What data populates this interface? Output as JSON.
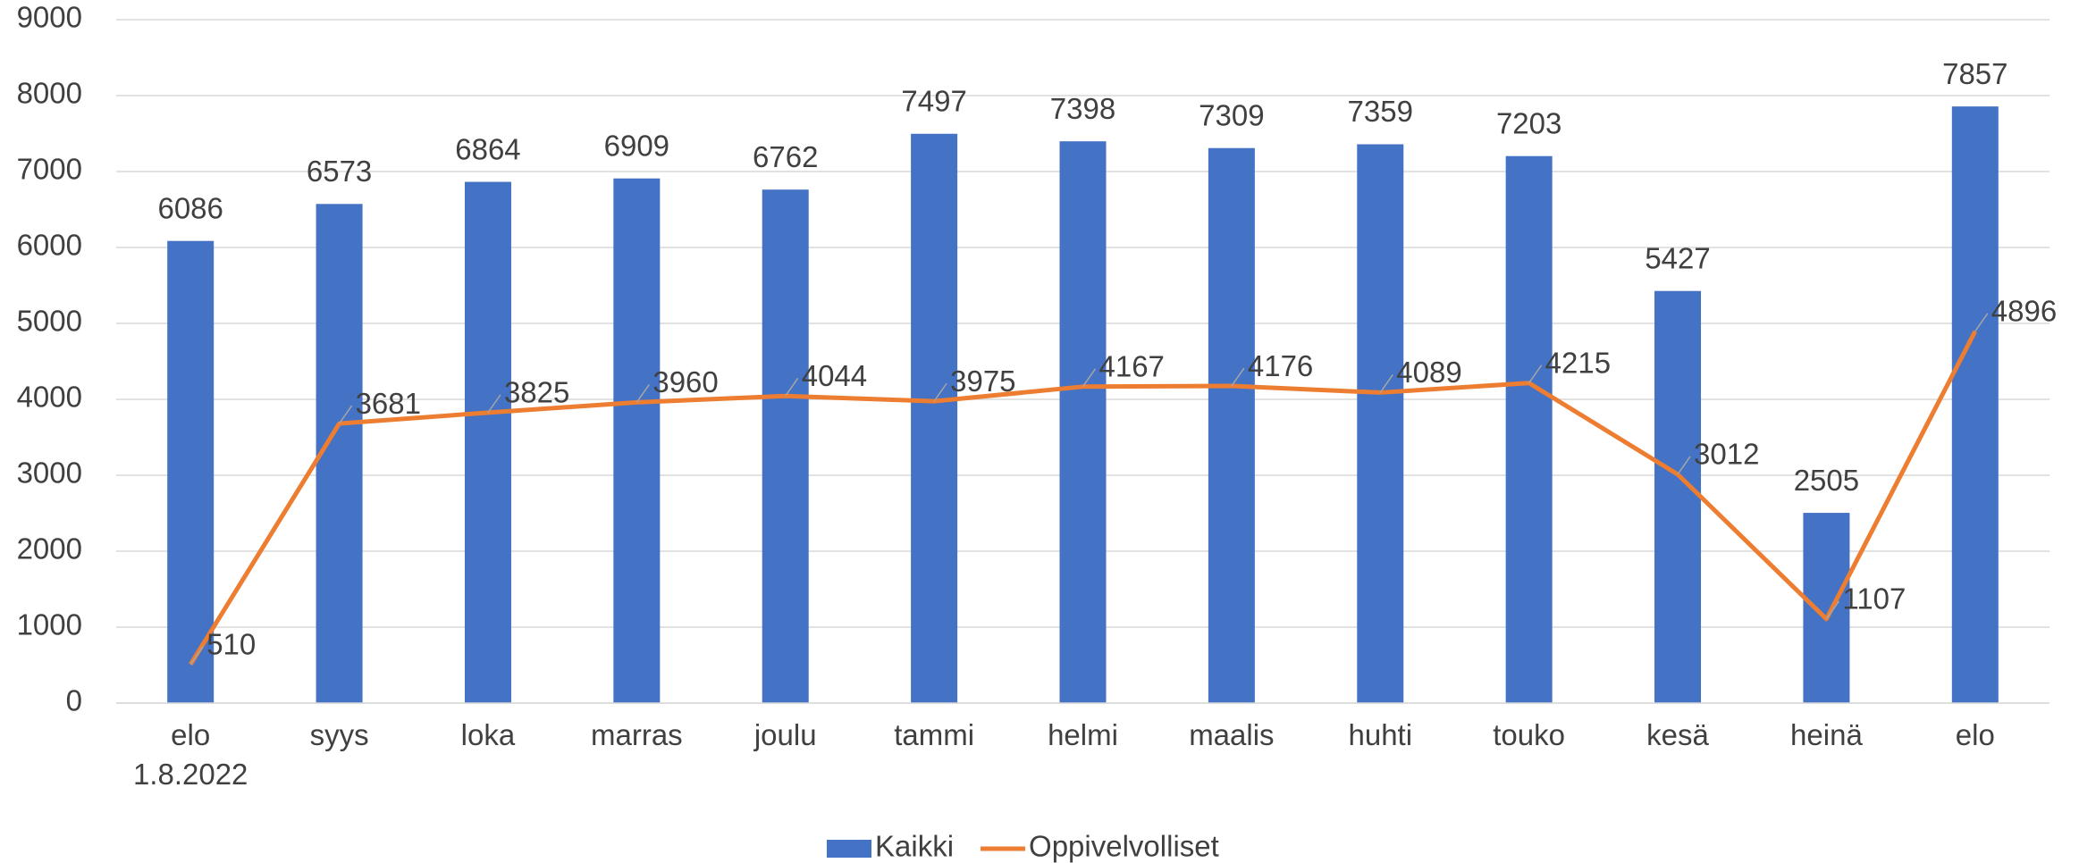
{
  "chart_data": {
    "type": "bar",
    "categories": [
      "elo\n1.8.2022",
      "syys",
      "loka",
      "marras",
      "joulu",
      "tammi",
      "helmi",
      "maalis",
      "huhti",
      "touko",
      "kesä",
      "heinä",
      "elo"
    ],
    "series": [
      {
        "name": "Kaikki",
        "type": "bar",
        "color": "#4472c4",
        "values": [
          6086,
          6573,
          6864,
          6909,
          6762,
          7497,
          7398,
          7309,
          7359,
          7203,
          5427,
          2505,
          7857
        ]
      },
      {
        "name": "Oppivelvolliset",
        "type": "line",
        "color": "#ed7d31",
        "values": [
          510,
          3681,
          3825,
          3960,
          4044,
          3975,
          4167,
          4176,
          4089,
          4215,
          3012,
          1107,
          4896
        ]
      }
    ],
    "ylim": [
      0,
      9000
    ],
    "yticks": [
      0,
      1000,
      2000,
      3000,
      4000,
      5000,
      6000,
      7000,
      8000,
      9000
    ],
    "grid": true,
    "legend": "bottom"
  }
}
